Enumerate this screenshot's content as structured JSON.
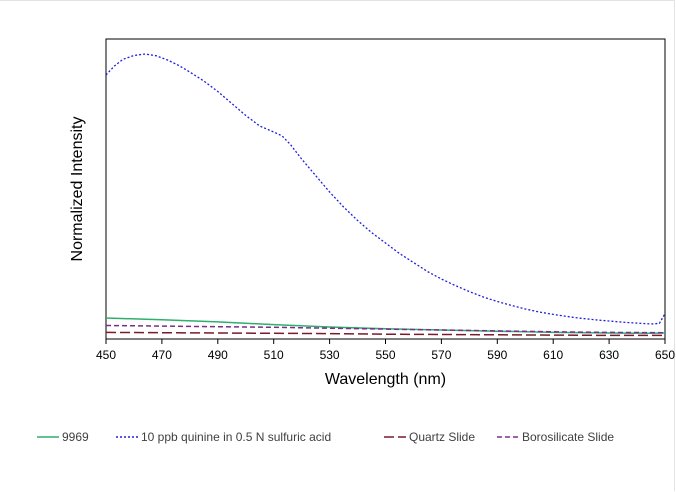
{
  "chart_data": {
    "type": "line",
    "title": "",
    "xlabel": "Wavelength (nm)",
    "ylabel": "Normalized Intensity",
    "xlim": [
      450,
      650
    ],
    "ylim": [
      0,
      1
    ],
    "x_ticks": [
      "450",
      "470",
      "490",
      "510",
      "530",
      "550",
      "570",
      "590",
      "610",
      "630",
      "650"
    ],
    "y_tick_labels_shown": false,
    "grid": false,
    "legend_position": "bottom",
    "series": [
      {
        "name": "9969",
        "color": "#2eaf6e",
        "dash": "solid",
        "points": [
          [
            450,
            0.07
          ],
          [
            470,
            0.064
          ],
          [
            490,
            0.057
          ],
          [
            510,
            0.048
          ],
          [
            530,
            0.04
          ],
          [
            550,
            0.034
          ],
          [
            570,
            0.03
          ],
          [
            590,
            0.026
          ],
          [
            610,
            0.022
          ],
          [
            630,
            0.02
          ],
          [
            645,
            0.019
          ],
          [
            650,
            0.02
          ]
        ]
      },
      {
        "name": "10 ppb quinine in 0.5 N sulfuric acid",
        "color": "#1f1fe0",
        "dash": "dotted",
        "points": [
          [
            450,
            0.88
          ],
          [
            453,
            0.91
          ],
          [
            456,
            0.932
          ],
          [
            460,
            0.945
          ],
          [
            464,
            0.95
          ],
          [
            468,
            0.944
          ],
          [
            472,
            0.93
          ],
          [
            476,
            0.912
          ],
          [
            480,
            0.89
          ],
          [
            485,
            0.86
          ],
          [
            490,
            0.825
          ],
          [
            495,
            0.785
          ],
          [
            500,
            0.745
          ],
          [
            505,
            0.71
          ],
          [
            510,
            0.69
          ],
          [
            513,
            0.677
          ],
          [
            516,
            0.648
          ],
          [
            520,
            0.6
          ],
          [
            525,
            0.545
          ],
          [
            530,
            0.49
          ],
          [
            535,
            0.44
          ],
          [
            540,
            0.395
          ],
          [
            545,
            0.355
          ],
          [
            550,
            0.32
          ],
          [
            555,
            0.285
          ],
          [
            560,
            0.255
          ],
          [
            565,
            0.225
          ],
          [
            570,
            0.2
          ],
          [
            575,
            0.178
          ],
          [
            580,
            0.158
          ],
          [
            585,
            0.14
          ],
          [
            590,
            0.125
          ],
          [
            595,
            0.112
          ],
          [
            600,
            0.1
          ],
          [
            605,
            0.09
          ],
          [
            610,
            0.082
          ],
          [
            615,
            0.075
          ],
          [
            620,
            0.069
          ],
          [
            625,
            0.064
          ],
          [
            630,
            0.06
          ],
          [
            635,
            0.056
          ],
          [
            640,
            0.053
          ],
          [
            645,
            0.05
          ],
          [
            648,
            0.052
          ],
          [
            650,
            0.085
          ]
        ]
      },
      {
        "name": "Quartz Slide",
        "color": "#7a1a2a",
        "dash": "long-dash",
        "points": [
          [
            450,
            0.022
          ],
          [
            470,
            0.021
          ],
          [
            490,
            0.02
          ],
          [
            510,
            0.019
          ],
          [
            530,
            0.018
          ],
          [
            550,
            0.016
          ],
          [
            570,
            0.015
          ],
          [
            590,
            0.014
          ],
          [
            610,
            0.013
          ],
          [
            630,
            0.012
          ],
          [
            650,
            0.012
          ]
        ]
      },
      {
        "name": "Borosilicate Slide",
        "color": "#7b2d8b",
        "dash": "dashed",
        "points": [
          [
            450,
            0.045
          ],
          [
            470,
            0.043
          ],
          [
            490,
            0.041
          ],
          [
            510,
            0.039
          ],
          [
            530,
            0.036
          ],
          [
            550,
            0.033
          ],
          [
            570,
            0.03
          ],
          [
            590,
            0.027
          ],
          [
            610,
            0.024
          ],
          [
            630,
            0.022
          ],
          [
            650,
            0.021
          ]
        ]
      }
    ]
  }
}
